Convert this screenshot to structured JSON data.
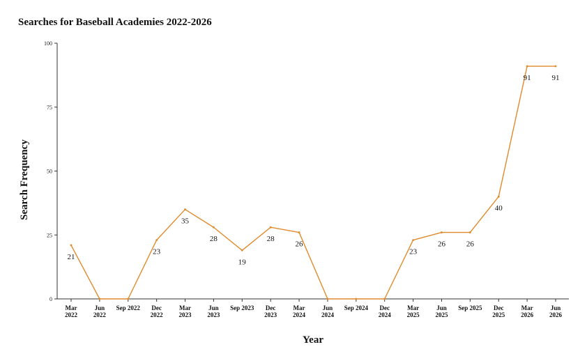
{
  "chart_data": {
    "type": "line",
    "title": "Searches for Baseball Academies 2022-2026",
    "xlabel": "Year",
    "ylabel": "Search Frequency",
    "ylim": [
      0,
      100
    ],
    "yticks": [
      "0",
      "25",
      "50",
      "75",
      "100"
    ],
    "grid": false,
    "line_color": "#e08a2c",
    "categories": [
      [
        "Mar",
        "2022"
      ],
      [
        "Jun",
        "2022"
      ],
      [
        "Sep 2022"
      ],
      [
        "Dec",
        "2022"
      ],
      [
        "Mar",
        "2023"
      ],
      [
        "Jun",
        "2023"
      ],
      [
        "Sep 2023"
      ],
      [
        "Dec",
        "2023"
      ],
      [
        "Mar",
        "2024"
      ],
      [
        "Jun",
        "2024"
      ],
      [
        "Sep 2024"
      ],
      [
        "Dec",
        "2024"
      ],
      [
        "Mar",
        "2025"
      ],
      [
        "Jun",
        "2025"
      ],
      [
        "Sep 2025"
      ],
      [
        "Dec",
        "2025"
      ],
      [
        "Mar",
        "2026"
      ],
      [
        "Jun",
        "2026"
      ]
    ],
    "values": [
      21,
      0,
      0,
      23,
      35,
      28,
      19,
      28,
      26,
      0,
      0,
      0,
      23,
      26,
      26,
      40,
      91,
      91
    ],
    "data_labels": [
      "21",
      "",
      "",
      "23",
      "35",
      "28",
      "19",
      "28",
      "26",
      "",
      "",
      "",
      "23",
      "26",
      "26",
      "40",
      "91",
      "91"
    ]
  }
}
